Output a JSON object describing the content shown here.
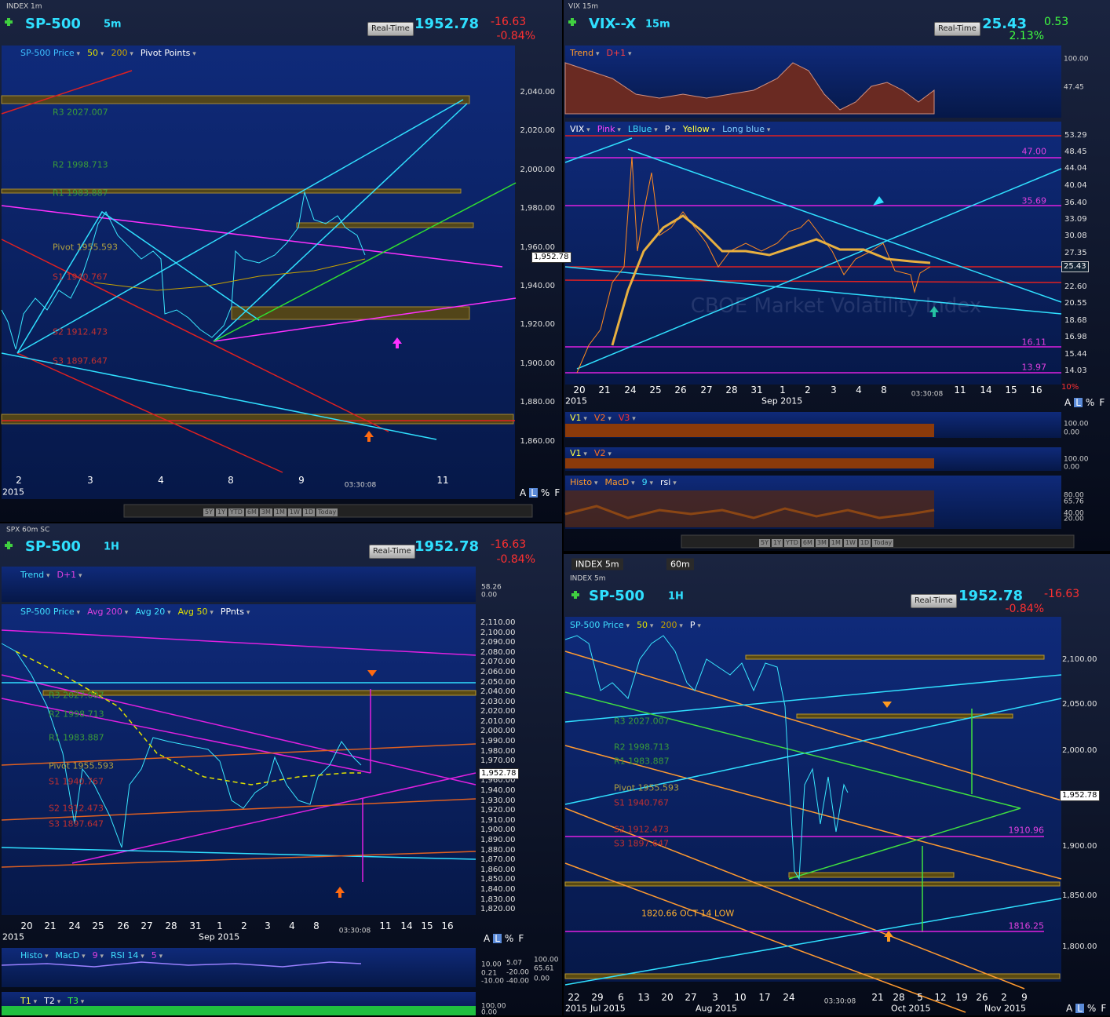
{
  "panels": [
    {
      "title": "INDEX 1m",
      "symbol": "SP-500",
      "interval": "5m",
      "mode": "Real-Time",
      "price": "1952.78",
      "change": "-16.63",
      "percent": "-0.84%",
      "legend": [
        "SP-500 Price",
        "50",
        "200",
        "Pivot Points"
      ],
      "levels": [
        "R3 2027.007",
        "R2 1998.713",
        "R1 1983.887",
        "Pivot 1955.593",
        "S1 1940.767",
        "S2 1912.473",
        "S3 1897.647"
      ],
      "y_ticks": [
        "2,040.00",
        "2,020.00",
        "2,000.00",
        "1,980.00",
        "1,960.00",
        "1,940.00",
        "1,920.00",
        "1,900.00",
        "1,880.00",
        "1,860.00"
      ],
      "price_tag": "1,952.78",
      "x_ticks": [
        "2",
        "3",
        "4",
        "8",
        "9",
        "11"
      ],
      "x_years": [
        "2015"
      ],
      "time": "03:30:08",
      "scale_modes": [
        "A",
        "L",
        "%",
        "F"
      ],
      "ranges": [
        "5Y",
        "1Y",
        "YTD",
        "6M",
        "3M",
        "1M",
        "1W",
        "1D",
        "Today"
      ]
    },
    {
      "title": "VIX 15m",
      "symbol": "VIX--X",
      "interval": "15m",
      "mode": "Real-Time",
      "price": "25.43",
      "change": "0.53",
      "percent": "2.13%",
      "upper_study": {
        "legend": [
          "Trend",
          "D+1"
        ],
        "scale": [
          "100.00",
          "47.45"
        ]
      },
      "legend": [
        "VIX",
        "Pink",
        "LBlue",
        "P",
        "Yellow",
        "Long blue"
      ],
      "watermark": "CBOE Market Volatility Index",
      "y_ticks": [
        "53.29",
        "48.45",
        "44.04",
        "40.04",
        "36.40",
        "33.09",
        "30.08",
        "27.35",
        "22.60",
        "20.55",
        "18.68",
        "16.98",
        "15.44",
        "14.03"
      ],
      "price_tag": "25.43",
      "levels": [
        "47.00",
        "35.69",
        "16.11",
        "13.97"
      ],
      "y_unit": "10%",
      "x_ticks": [
        "20",
        "21",
        "24",
        "25",
        "26",
        "27",
        "28",
        "31",
        "1",
        "2",
        "3",
        "4",
        "8",
        "11",
        "14",
        "15",
        "16"
      ],
      "x_years": [
        "2015",
        "Sep 2015"
      ],
      "time": "03:30:08",
      "scale_modes": [
        "A",
        "L",
        "%",
        "F"
      ],
      "lower_studies": [
        {
          "legend": [
            "V1",
            "V2",
            "V3"
          ],
          "scale": [
            "100.00",
            "0.00"
          ]
        },
        {
          "legend": [
            "V1",
            "V2"
          ],
          "scale": [
            "100.00",
            "0.00"
          ]
        },
        {
          "legend": [
            "Histo",
            "MacD",
            "9",
            "rsi"
          ],
          "scale": [
            "80.00",
            "65.76",
            "40.00",
            "20.00"
          ]
        }
      ],
      "ranges": [
        "5Y",
        "1Y",
        "YTD",
        "6M",
        "3M",
        "1M",
        "1W",
        "1D",
        "Today"
      ]
    },
    {
      "title": "SPX 60m SC",
      "symbol": "SP-500",
      "interval": "1H",
      "mode": "Real-Time",
      "price": "1952.78",
      "change": "-16.63",
      "percent": "-0.84%",
      "upper_study": {
        "legend": [
          "Trend",
          "D+1"
        ],
        "scale": [
          "58.26",
          "0.00"
        ]
      },
      "legend": [
        "SP-500 Price",
        "Avg 200",
        "Avg 20",
        "Avg 50",
        "PPnts"
      ],
      "levels": [
        "R3 2027.007",
        "R2 1998.713",
        "R1 1983.887",
        "Pivot 1955.593",
        "S1 1940.767",
        "S2 1912.473",
        "S3 1897.647"
      ],
      "y_ticks": [
        "2,110.00",
        "2,100.00",
        "2,090.00",
        "2,080.00",
        "2,070.00",
        "2,060.00",
        "2,050.00",
        "2,040.00",
        "2,030.00",
        "2,020.00",
        "2,010.00",
        "2,000.00",
        "1,990.00",
        "1,980.00",
        "1,970.00",
        "1,960.00",
        "1,940.00",
        "1,930.00",
        "1,920.00",
        "1,910.00",
        "1,900.00",
        "1,890.00",
        "1,880.00",
        "1,870.00",
        "1,860.00",
        "1,850.00",
        "1,840.00",
        "1,830.00",
        "1,820.00"
      ],
      "price_tag": "1,952.78",
      "x_ticks": [
        "20",
        "21",
        "24",
        "25",
        "26",
        "27",
        "28",
        "31",
        "1",
        "2",
        "3",
        "4",
        "8",
        "11",
        "14",
        "15",
        "16"
      ],
      "x_years": [
        "2015",
        "Sep 2015"
      ],
      "time": "03:30:08",
      "scale_modes": [
        "A",
        "L",
        "%",
        "F"
      ],
      "lower_studies": [
        {
          "legend": [
            "Histo",
            "MacD",
            "9",
            "RSI 14",
            "5"
          ],
          "scale": [
            "10.00",
            "0.21",
            "-10.00",
            "5.07",
            "-20.00",
            "-40.00",
            "100.00",
            "65.61",
            "0.00"
          ]
        },
        {
          "legend": [
            "T1",
            "T2",
            "T3"
          ],
          "scale": [
            "100.00",
            "0.00"
          ]
        }
      ]
    },
    {
      "tabs": [
        "INDEX 5m",
        "60m"
      ],
      "title": "INDEX 5m",
      "symbol": "SP-500",
      "interval": "1H",
      "mode": "Real-Time",
      "price": "1952.78",
      "change": "-16.63",
      "percent": "-0.84%",
      "legend": [
        "SP-500 Price",
        "50",
        "200",
        "P"
      ],
      "levels": [
        "R3 2027.007",
        "R2 1998.713",
        "R1 1983.887",
        "Pivot 1955.593",
        "S1 1940.767",
        "S2 1912.473",
        "S3 1897.647",
        "1910.96",
        "1816.25"
      ],
      "annotation": "1820.66 OCT 14 LOW",
      "y_ticks": [
        "2,100.00",
        "2,050.00",
        "2,000.00",
        "1,900.00",
        "1,850.00",
        "1,800.00"
      ],
      "price_tag": "1,952.78",
      "x_ticks": [
        "22",
        "29",
        "6",
        "13",
        "20",
        "27",
        "3",
        "10",
        "17",
        "24",
        "21",
        "28",
        "5",
        "12",
        "19",
        "26",
        "2",
        "9"
      ],
      "x_years": [
        "2015",
        "Jul 2015",
        "Aug 2015",
        "Oct 2015",
        "Nov 2015"
      ],
      "time": "03:30:08",
      "scale_modes": [
        "A",
        "L",
        "%",
        "F"
      ]
    }
  ]
}
